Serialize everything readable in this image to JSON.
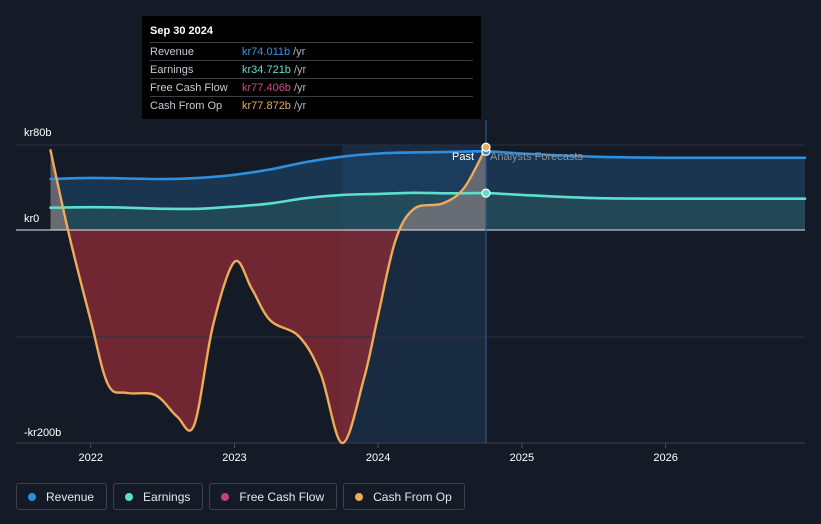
{
  "chart_data": {
    "type": "line",
    "y_unit_labels": [
      "kr80b",
      "kr0",
      "-kr200b"
    ],
    "y_ticks": [
      80,
      0,
      -200
    ],
    "ylim": [
      -200,
      80
    ],
    "x_ticks": [
      2022,
      2023,
      2024,
      2025,
      2026
    ],
    "x_tick_labels": [
      "2022",
      "2023",
      "2024",
      "2025",
      "2026"
    ],
    "xlim": [
      2021.48,
      2026.97
    ],
    "past_label": "Past",
    "forecast_label": "Analysts Forecasts",
    "divider_x": 2024.75,
    "forecast_band_start": 2023.75,
    "series": [
      {
        "name": "Revenue",
        "color": "#2d8fe0",
        "points": [
          [
            2021.72,
            48
          ],
          [
            2022.0,
            49
          ],
          [
            2022.25,
            48.5
          ],
          [
            2022.5,
            48
          ],
          [
            2022.75,
            49
          ],
          [
            2023.0,
            52
          ],
          [
            2023.25,
            57
          ],
          [
            2023.5,
            64
          ],
          [
            2023.75,
            69
          ],
          [
            2024.0,
            72
          ],
          [
            2024.25,
            73
          ],
          [
            2024.5,
            73.5
          ],
          [
            2024.75,
            74.011
          ],
          [
            2025.0,
            72
          ],
          [
            2025.5,
            69
          ],
          [
            2026.0,
            68
          ],
          [
            2026.5,
            68
          ],
          [
            2026.97,
            68
          ]
        ]
      },
      {
        "name": "Earnings",
        "color": "#5ce0cc",
        "points": [
          [
            2021.72,
            21
          ],
          [
            2022.0,
            21.5
          ],
          [
            2022.25,
            21
          ],
          [
            2022.5,
            20
          ],
          [
            2022.75,
            20
          ],
          [
            2023.0,
            22
          ],
          [
            2023.25,
            25
          ],
          [
            2023.5,
            30
          ],
          [
            2023.75,
            33
          ],
          [
            2024.0,
            34
          ],
          [
            2024.25,
            35
          ],
          [
            2024.5,
            34.5
          ],
          [
            2024.75,
            34.721
          ],
          [
            2025.0,
            33
          ],
          [
            2025.5,
            30
          ],
          [
            2026.0,
            29.5
          ],
          [
            2026.5,
            29.5
          ],
          [
            2026.97,
            29.5
          ]
        ]
      },
      {
        "name": "Free Cash Flow",
        "color": "#c2427e",
        "points": []
      },
      {
        "name": "Cash From Op",
        "color": "#eeab5a",
        "points": [
          [
            2021.72,
            75
          ],
          [
            2021.85,
            -5
          ],
          [
            2022.0,
            -85
          ],
          [
            2022.12,
            -145
          ],
          [
            2022.25,
            -153
          ],
          [
            2022.45,
            -155
          ],
          [
            2022.6,
            -175
          ],
          [
            2022.72,
            -183
          ],
          [
            2022.85,
            -90
          ],
          [
            2023.0,
            -30
          ],
          [
            2023.12,
            -55
          ],
          [
            2023.25,
            -85
          ],
          [
            2023.45,
            -100
          ],
          [
            2023.6,
            -135
          ],
          [
            2023.75,
            -200
          ],
          [
            2023.9,
            -140
          ],
          [
            2024.0,
            -80
          ],
          [
            2024.12,
            -10
          ],
          [
            2024.25,
            20
          ],
          [
            2024.45,
            25
          ],
          [
            2024.6,
            40
          ],
          [
            2024.75,
            77.872
          ]
        ]
      }
    ]
  },
  "tooltip": {
    "date": "Sep 30 2024",
    "rows": [
      {
        "label": "Revenue",
        "value": "kr74.011b",
        "unit": "/yr",
        "color": "#3795e6"
      },
      {
        "label": "Earnings",
        "value": "kr34.721b",
        "unit": "/yr",
        "color": "#5ce0cc"
      },
      {
        "label": "Free Cash Flow",
        "value": "kr77.406b",
        "unit": "/yr",
        "color": "#d04a8c"
      },
      {
        "label": "Cash From Op",
        "value": "kr77.872b",
        "unit": "/yr",
        "color": "#eeab5a"
      }
    ]
  },
  "legend": [
    {
      "label": "Revenue",
      "color": "#2d8fe0"
    },
    {
      "label": "Earnings",
      "color": "#5ce0cc"
    },
    {
      "label": "Free Cash Flow",
      "color": "#c2427e"
    },
    {
      "label": "Cash From Op",
      "color": "#eeab5a"
    }
  ]
}
